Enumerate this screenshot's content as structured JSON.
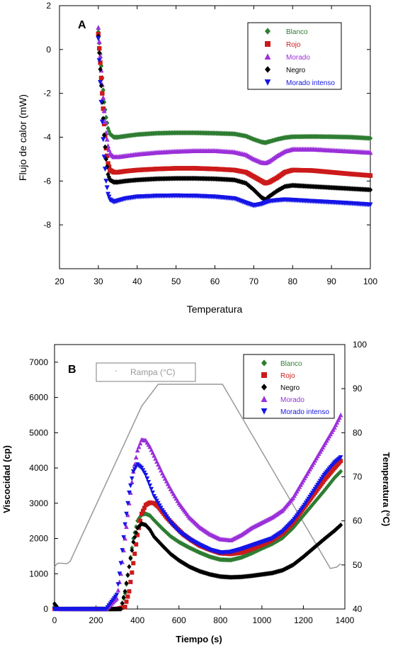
{
  "chart_data": [
    {
      "type": "scatter",
      "panel_label": "A",
      "xlabel": "Temperatura",
      "ylabel": "Flujo de calor (mW)",
      "xlim": [
        20,
        100
      ],
      "ylim": [
        -10,
        2
      ],
      "xticks": [
        "20",
        "30",
        "40",
        "50",
        "60",
        "70",
        "80",
        "90",
        "100"
      ],
      "yticks": [
        "2",
        "0",
        "-2",
        "-4",
        "-6",
        "-8"
      ],
      "legend_position": "top-right",
      "grid": false,
      "series": [
        {
          "name": "Blanco",
          "color": "#2e7d32",
          "marker": "diamond",
          "x": [
            30,
            30.5,
            31,
            31.5,
            32,
            32.5,
            33,
            34,
            35,
            37,
            40,
            45,
            50,
            55,
            60,
            65,
            68,
            70,
            72,
            73,
            74,
            76,
            78,
            80,
            85,
            90,
            95,
            100
          ],
          "y": [
            0.8,
            -0.2,
            -1.3,
            -2.4,
            -3.1,
            -3.6,
            -3.85,
            -4.0,
            -4.0,
            -3.95,
            -3.88,
            -3.82,
            -3.8,
            -3.8,
            -3.82,
            -3.85,
            -3.95,
            -4.1,
            -4.22,
            -4.25,
            -4.2,
            -4.1,
            -4.02,
            -3.98,
            -3.97,
            -3.98,
            -4.0,
            -4.05
          ]
        },
        {
          "name": "Rojo",
          "color": "#cc1a1a",
          "marker": "square",
          "x": [
            30,
            30.5,
            31,
            31.5,
            32,
            32.5,
            33,
            34,
            35,
            37,
            40,
            45,
            50,
            55,
            60,
            65,
            68,
            70,
            72,
            73,
            74,
            76,
            78,
            80,
            85,
            90,
            95,
            100
          ],
          "y": [
            0.7,
            -0.6,
            -2.0,
            -3.4,
            -4.5,
            -5.2,
            -5.5,
            -5.6,
            -5.6,
            -5.55,
            -5.5,
            -5.45,
            -5.42,
            -5.42,
            -5.45,
            -5.5,
            -5.6,
            -5.8,
            -6.0,
            -6.1,
            -6.05,
            -5.85,
            -5.6,
            -5.5,
            -5.52,
            -5.6,
            -5.68,
            -5.75
          ]
        },
        {
          "name": "Morado",
          "color": "#9b30d9",
          "marker": "triangle-up",
          "x": [
            30,
            30.5,
            31,
            31.5,
            32,
            32.5,
            33,
            34,
            35,
            37,
            40,
            45,
            50,
            55,
            60,
            65,
            68,
            70,
            72,
            73,
            74,
            76,
            78,
            80,
            85,
            90,
            95,
            100
          ],
          "y": [
            1.0,
            -0.3,
            -1.6,
            -2.8,
            -3.8,
            -4.4,
            -4.75,
            -4.9,
            -4.9,
            -4.85,
            -4.78,
            -4.7,
            -4.65,
            -4.62,
            -4.62,
            -4.68,
            -4.8,
            -5.0,
            -5.15,
            -5.18,
            -5.1,
            -4.85,
            -4.65,
            -4.55,
            -4.55,
            -4.6,
            -4.65,
            -4.7
          ]
        },
        {
          "name": "Negro",
          "color": "#000000",
          "marker": "diamond",
          "x": [
            30,
            30.5,
            31,
            31.5,
            32,
            32.5,
            33,
            34,
            35,
            37,
            40,
            45,
            50,
            55,
            60,
            65,
            68,
            70,
            72,
            73,
            74,
            76,
            78,
            80,
            82,
            85,
            90,
            95,
            100
          ],
          "y": [
            0.6,
            -0.9,
            -2.4,
            -3.9,
            -5.0,
            -5.7,
            -5.95,
            -6.05,
            -6.05,
            -6.0,
            -5.95,
            -5.9,
            -5.88,
            -5.88,
            -5.9,
            -5.95,
            -6.1,
            -6.4,
            -6.75,
            -6.85,
            -6.7,
            -6.45,
            -6.25,
            -6.2,
            -6.22,
            -6.25,
            -6.3,
            -6.35,
            -6.4
          ]
        },
        {
          "name": "Morado intenso",
          "color": "#1515e6",
          "marker": "triangle-down",
          "x": [
            30,
            30.5,
            31,
            31.5,
            32,
            32.5,
            33,
            34,
            35,
            37,
            40,
            45,
            50,
            55,
            60,
            65,
            68,
            70,
            72,
            73,
            74,
            76,
            78,
            80,
            85,
            90,
            95,
            100
          ],
          "y": [
            0.5,
            -1.5,
            -3.3,
            -4.9,
            -6.0,
            -6.6,
            -6.85,
            -6.95,
            -6.9,
            -6.8,
            -6.72,
            -6.68,
            -6.67,
            -6.68,
            -6.72,
            -6.8,
            -7.0,
            -7.12,
            -7.05,
            -6.98,
            -6.92,
            -6.88,
            -6.85,
            -6.87,
            -6.92,
            -6.97,
            -7.02,
            -7.08
          ]
        }
      ]
    },
    {
      "type": "scatter",
      "panel_label": "B",
      "xlabel": "Tiempo (s)",
      "ylabel": "Viscocidad (cp)",
      "y2label": "Temperatura (°C)",
      "xlim": [
        0,
        1400
      ],
      "ylim": [
        0,
        7500
      ],
      "y2lim": [
        40,
        100
      ],
      "xticks": [
        "0",
        "200",
        "400",
        "600",
        "800",
        "1000",
        "1200",
        "1400"
      ],
      "yticks": [
        "0",
        "1000",
        "2000",
        "3000",
        "4000",
        "5000",
        "6000",
        "7000"
      ],
      "y2ticks": [
        "40",
        "50",
        "60",
        "70",
        "80",
        "90",
        "100"
      ],
      "legend_position": "top-right",
      "grid": false,
      "ramp": {
        "name": "Rampa (°C)",
        "color": "#999999",
        "x": [
          0,
          10,
          20,
          60,
          75,
          420,
          500,
          810,
          1330,
          1360,
          1380
        ],
        "y": [
          49.5,
          50.2,
          50.4,
          50.3,
          50.8,
          86,
          91,
          91,
          49.2,
          49.5,
          50.3
        ]
      },
      "series": [
        {
          "name": "Blanco",
          "color": "#2e7d32",
          "marker": "diamond",
          "x": [
            0,
            20,
            250,
            320,
            340,
            360,
            380,
            400,
            420,
            440,
            460,
            480,
            520,
            560,
            600,
            650,
            700,
            750,
            800,
            850,
            900,
            950,
            1000,
            1050,
            1100,
            1150,
            1200,
            1250,
            1300,
            1350,
            1380
          ],
          "y": [
            80,
            0,
            0,
            0,
            450,
            1200,
            2000,
            2500,
            2680,
            2700,
            2650,
            2520,
            2280,
            2060,
            1900,
            1740,
            1600,
            1480,
            1400,
            1390,
            1460,
            1580,
            1720,
            1850,
            2020,
            2300,
            2650,
            3000,
            3350,
            3720,
            3900
          ]
        },
        {
          "name": "Rojo",
          "color": "#cc1a1a",
          "marker": "square",
          "x": [
            0,
            20,
            300,
            340,
            360,
            380,
            400,
            420,
            440,
            460,
            480,
            500,
            540,
            580,
            620,
            660,
            700,
            750,
            800,
            850,
            900,
            950,
            1000,
            1050,
            1100,
            1150,
            1200,
            1250,
            1300,
            1350,
            1380
          ],
          "y": [
            0,
            0,
            0,
            60,
            500,
            1300,
            2100,
            2700,
            2950,
            3020,
            3000,
            2900,
            2600,
            2350,
            2120,
            1950,
            1800,
            1680,
            1580,
            1560,
            1600,
            1700,
            1820,
            1960,
            2150,
            2450,
            2850,
            3250,
            3650,
            4000,
            4200
          ]
        },
        {
          "name": "Negro",
          "color": "#000000",
          "marker": "diamond",
          "x": [
            0,
            20,
            260,
            320,
            340,
            360,
            380,
            400,
            420,
            440,
            460,
            480,
            520,
            560,
            600,
            650,
            700,
            750,
            800,
            850,
            900,
            950,
            1000,
            1050,
            1100,
            1150,
            1200,
            1250,
            1300,
            1350,
            1380
          ],
          "y": [
            150,
            0,
            0,
            0,
            500,
            1200,
            1900,
            2300,
            2420,
            2380,
            2250,
            2050,
            1800,
            1560,
            1380,
            1200,
            1070,
            980,
            920,
            900,
            910,
            940,
            980,
            1020,
            1100,
            1250,
            1480,
            1730,
            1980,
            2220,
            2380
          ]
        },
        {
          "name": "Morado",
          "color": "#9b30d9",
          "marker": "triangle-up",
          "x": [
            0,
            20,
            250,
            300,
            320,
            340,
            360,
            380,
            400,
            420,
            440,
            460,
            480,
            520,
            560,
            600,
            650,
            700,
            750,
            800,
            850,
            900,
            950,
            1000,
            1050,
            1100,
            1150,
            1200,
            1250,
            1300,
            1350,
            1380
          ],
          "y": [
            0,
            0,
            0,
            300,
            1000,
            2000,
            3000,
            3900,
            4500,
            4800,
            4780,
            4600,
            4350,
            3850,
            3400,
            3000,
            2600,
            2320,
            2120,
            1980,
            1950,
            2100,
            2300,
            2450,
            2600,
            2800,
            3150,
            3650,
            4150,
            4650,
            5150,
            5500
          ]
        },
        {
          "name": "Morado intenso",
          "color": "#1515e6",
          "marker": "triangle-down",
          "x": [
            0,
            20,
            250,
            300,
            320,
            340,
            360,
            380,
            400,
            420,
            440,
            460,
            480,
            520,
            560,
            600,
            650,
            700,
            750,
            800,
            850,
            900,
            950,
            1000,
            1050,
            1100,
            1150,
            1200,
            1250,
            1300,
            1350,
            1380
          ],
          "y": [
            0,
            0,
            0,
            400,
            1300,
            2400,
            3300,
            3900,
            4100,
            4000,
            3800,
            3500,
            3200,
            2800,
            2450,
            2200,
            1980,
            1820,
            1680,
            1600,
            1620,
            1700,
            1800,
            1900,
            2000,
            2200,
            2500,
            2900,
            3350,
            3800,
            4150,
            4300
          ]
        }
      ]
    }
  ]
}
